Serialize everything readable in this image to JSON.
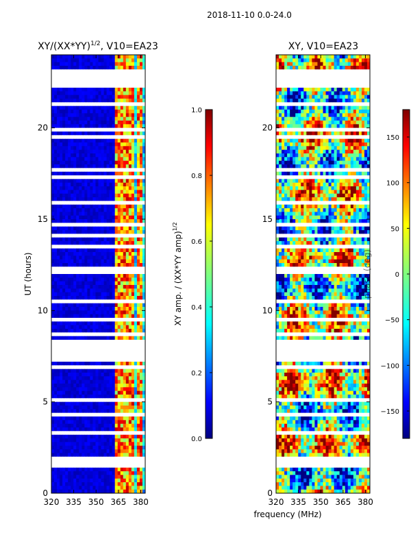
{
  "figure_title": "2018-11-10 0.0-24.0",
  "xlabel": "frequency (MHz)",
  "chart_data": [
    {
      "type": "heatmap",
      "title": "XY/(XX*YY)^1/2, V10=EA23",
      "title_main": "XY/(XX*YY)",
      "title_sup": "1/2",
      "title_tail": ", V10=EA23",
      "xlabel": "frequency (MHz)",
      "ylabel": "UT (hours)",
      "xlim": [
        320,
        383
      ],
      "ylim": [
        0,
        24
      ],
      "xticks": [
        320,
        335,
        350,
        365,
        380
      ],
      "yticks": [
        0,
        5,
        10,
        15,
        20
      ],
      "colorbar": {
        "label_main": "XY amp. / (XX*YY amp)",
        "label_sup": "1/2",
        "range": [
          0.0,
          1.0
        ],
        "ticks": [
          "0.0",
          "0.2",
          "0.4",
          "0.6",
          "0.8",
          "1.0"
        ]
      },
      "bright_channels_mhz": [
        363,
        366,
        368,
        372,
        375,
        378,
        380
      ],
      "missing_time_ranges_hours": [
        [
          7.3,
          8.4
        ],
        [
          22.3,
          23.1
        ],
        [
          13.3,
          13.5
        ],
        [
          1.9,
          2.1
        ]
      ]
    },
    {
      "type": "heatmap",
      "title": "XY, V10=EA23",
      "xlabel": "frequency (MHz)",
      "ylabel": "",
      "xlim": [
        320,
        383
      ],
      "ylim": [
        0,
        24
      ],
      "xticks": [
        320,
        335,
        350,
        365,
        380
      ],
      "yticks": [
        0,
        5,
        10,
        15,
        20
      ],
      "colorbar": {
        "label": "phase (deg)",
        "range": [
          -180,
          180
        ],
        "ticks": [
          "150",
          "100",
          "50",
          "0",
          "−50",
          "−100",
          "−150"
        ]
      },
      "missing_time_ranges_hours": [
        [
          7.3,
          8.4
        ],
        [
          22.3,
          23.1
        ],
        [
          13.3,
          13.5
        ],
        [
          1.9,
          2.1
        ]
      ]
    }
  ]
}
